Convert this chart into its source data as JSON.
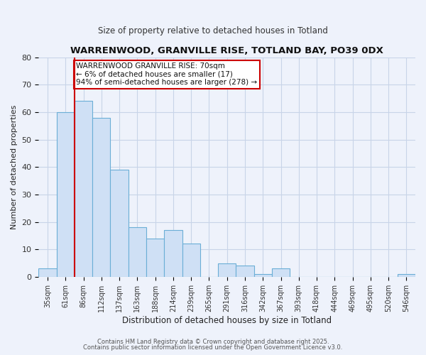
{
  "title1": "WARRENWOOD, GRANVILLE RISE, TOTLAND BAY, PO39 0DX",
  "title2": "Size of property relative to detached houses in Totland",
  "xlabel": "Distribution of detached houses by size in Totland",
  "ylabel": "Number of detached properties",
  "bar_labels": [
    "35sqm",
    "61sqm",
    "86sqm",
    "112sqm",
    "137sqm",
    "163sqm",
    "188sqm",
    "214sqm",
    "239sqm",
    "265sqm",
    "291sqm",
    "316sqm",
    "342sqm",
    "367sqm",
    "393sqm",
    "418sqm",
    "444sqm",
    "469sqm",
    "495sqm",
    "520sqm",
    "546sqm"
  ],
  "bar_values": [
    3,
    60,
    64,
    58,
    39,
    18,
    14,
    17,
    12,
    0,
    5,
    4,
    1,
    3,
    0,
    0,
    0,
    0,
    0,
    0,
    1
  ],
  "bar_color": "#cfe0f5",
  "bar_edge_color": "#6baed6",
  "background_color": "#eef2fb",
  "grid_color": "#c8d4e8",
  "vline_color": "#cc0000",
  "annotation_text": "WARRENWOOD GRANVILLE RISE: 70sqm\n← 6% of detached houses are smaller (17)\n94% of semi-detached houses are larger (278) →",
  "annotation_box_color": "#ffffff",
  "annotation_box_edge": "#cc0000",
  "ylim": [
    0,
    80
  ],
  "yticks": [
    0,
    10,
    20,
    30,
    40,
    50,
    60,
    70,
    80
  ],
  "footer1": "Contains HM Land Registry data © Crown copyright and database right 2025.",
  "footer2": "Contains public sector information licensed under the Open Government Licence v3.0."
}
